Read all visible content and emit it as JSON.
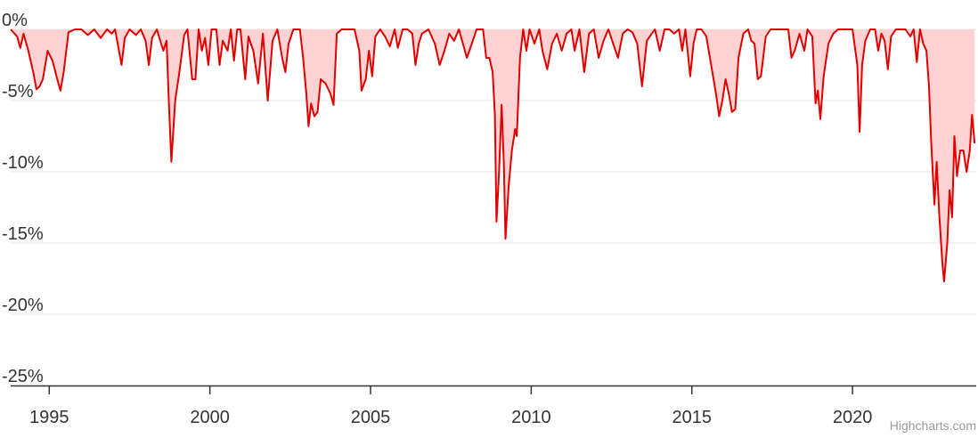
{
  "chart_data": {
    "type": "area",
    "title": "",
    "xlabel": "",
    "ylabel": "",
    "xlim": [
      1993.8,
      2023.85
    ],
    "ylim": [
      -25,
      0
    ],
    "grid": true,
    "legend": "none",
    "y_ticks": [
      {
        "value": 0,
        "label": "0%"
      },
      {
        "value": -5,
        "label": "-5%"
      },
      {
        "value": -10,
        "label": "-10%"
      },
      {
        "value": -15,
        "label": "-15%"
      },
      {
        "value": -20,
        "label": "-20%"
      },
      {
        "value": -25,
        "label": "-25%"
      }
    ],
    "x_ticks": [
      {
        "value": 1995,
        "label": "1995"
      },
      {
        "value": 2000,
        "label": "2000"
      },
      {
        "value": 2005,
        "label": "2005"
      },
      {
        "value": 2010,
        "label": "2010"
      },
      {
        "value": 2015,
        "label": "2015"
      },
      {
        "value": 2020,
        "label": "2020"
      }
    ],
    "series": [
      {
        "color": "#e00000",
        "fill": "#ffd3d3",
        "points": [
          [
            1993.8,
            0
          ],
          [
            1994.0,
            -0.5
          ],
          [
            1994.1,
            -1.3
          ],
          [
            1994.2,
            -0.3
          ],
          [
            1994.35,
            -1.5
          ],
          [
            1994.5,
            -3.0
          ],
          [
            1994.6,
            -4.2
          ],
          [
            1994.7,
            -4.0
          ],
          [
            1994.8,
            -3.5
          ],
          [
            1994.95,
            -1.5
          ],
          [
            1995.1,
            -2.2
          ],
          [
            1995.25,
            -3.5
          ],
          [
            1995.35,
            -4.3
          ],
          [
            1995.45,
            -3.0
          ],
          [
            1995.6,
            -0.2
          ],
          [
            1995.8,
            0
          ],
          [
            1996.0,
            0
          ],
          [
            1996.2,
            -0.4
          ],
          [
            1996.4,
            0
          ],
          [
            1996.6,
            -0.6
          ],
          [
            1996.8,
            0
          ],
          [
            1996.95,
            -0.3
          ],
          [
            1997.05,
            0
          ],
          [
            1997.25,
            -2.5
          ],
          [
            1997.35,
            -0.6
          ],
          [
            1997.5,
            0
          ],
          [
            1997.7,
            -0.4
          ],
          [
            1997.85,
            0
          ],
          [
            1998.0,
            -0.8
          ],
          [
            1998.1,
            -2.5
          ],
          [
            1998.2,
            -0.6
          ],
          [
            1998.35,
            0
          ],
          [
            1998.55,
            -1.5
          ],
          [
            1998.65,
            -0.8
          ],
          [
            1998.72,
            -5.0
          ],
          [
            1998.8,
            -9.3
          ],
          [
            1998.92,
            -5.0
          ],
          [
            1999.05,
            -3.0
          ],
          [
            1999.2,
            -0.4
          ],
          [
            1999.3,
            0
          ],
          [
            1999.45,
            -3.5
          ],
          [
            1999.55,
            -3.5
          ],
          [
            1999.65,
            0
          ],
          [
            1999.75,
            -1.5
          ],
          [
            1999.85,
            -0.6
          ],
          [
            1999.95,
            -2.5
          ],
          [
            2000.05,
            0
          ],
          [
            2000.2,
            0
          ],
          [
            2000.3,
            -2.5
          ],
          [
            2000.4,
            -0.8
          ],
          [
            2000.55,
            -1.5
          ],
          [
            2000.65,
            0
          ],
          [
            2000.75,
            -2.2
          ],
          [
            2000.85,
            0
          ],
          [
            2000.95,
            0
          ],
          [
            2001.1,
            -3.5
          ],
          [
            2001.2,
            -0.5
          ],
          [
            2001.35,
            -1.5
          ],
          [
            2001.5,
            -3.8
          ],
          [
            2001.65,
            -0.3
          ],
          [
            2001.8,
            -5.0
          ],
          [
            2001.95,
            -0.8
          ],
          [
            2002.1,
            0
          ],
          [
            2002.25,
            -2.0
          ],
          [
            2002.35,
            -3.0
          ],
          [
            2002.45,
            -1.0
          ],
          [
            2002.6,
            0
          ],
          [
            2002.8,
            0
          ],
          [
            2002.9,
            -2.0
          ],
          [
            2003.0,
            -4.5
          ],
          [
            2003.07,
            -6.8
          ],
          [
            2003.15,
            -5.2
          ],
          [
            2003.25,
            -6.1
          ],
          [
            2003.35,
            -5.8
          ],
          [
            2003.45,
            -3.5
          ],
          [
            2003.6,
            -3.8
          ],
          [
            2003.75,
            -4.5
          ],
          [
            2003.85,
            -5.3
          ],
          [
            2003.95,
            -0.3
          ],
          [
            2004.1,
            0
          ],
          [
            2004.3,
            0
          ],
          [
            2004.5,
            0
          ],
          [
            2004.65,
            -1.5
          ],
          [
            2004.72,
            -4.3
          ],
          [
            2004.85,
            -3.5
          ],
          [
            2004.95,
            -1.5
          ],
          [
            2005.05,
            -3.3
          ],
          [
            2005.15,
            -0.5
          ],
          [
            2005.3,
            0
          ],
          [
            2005.45,
            -0.5
          ],
          [
            2005.6,
            -1.2
          ],
          [
            2005.75,
            0
          ],
          [
            2005.85,
            -1.3
          ],
          [
            2006.0,
            0
          ],
          [
            2006.15,
            0
          ],
          [
            2006.3,
            -0.3
          ],
          [
            2006.4,
            -2.5
          ],
          [
            2006.5,
            -1.0
          ],
          [
            2006.6,
            -0.3
          ],
          [
            2006.8,
            0
          ],
          [
            2007.0,
            -1.0
          ],
          [
            2007.15,
            -2.5
          ],
          [
            2007.3,
            -1.5
          ],
          [
            2007.45,
            -0.3
          ],
          [
            2007.6,
            -0.8
          ],
          [
            2007.75,
            0
          ],
          [
            2007.9,
            -1.2
          ],
          [
            2008.0,
            -2.0
          ],
          [
            2008.15,
            -1.0
          ],
          [
            2008.3,
            0
          ],
          [
            2008.5,
            0
          ],
          [
            2008.6,
            -2.0
          ],
          [
            2008.7,
            -2.0
          ],
          [
            2008.8,
            -3.0
          ],
          [
            2008.87,
            -6.0
          ],
          [
            2008.92,
            -13.5
          ],
          [
            2009.0,
            -10.0
          ],
          [
            2009.08,
            -5.3
          ],
          [
            2009.15,
            -9.5
          ],
          [
            2009.2,
            -14.7
          ],
          [
            2009.3,
            -11.0
          ],
          [
            2009.4,
            -8.5
          ],
          [
            2009.5,
            -7.0
          ],
          [
            2009.55,
            -7.5
          ],
          [
            2009.65,
            -2.0
          ],
          [
            2009.75,
            0
          ],
          [
            2009.85,
            -1.5
          ],
          [
            2009.95,
            0
          ],
          [
            2010.1,
            -1.0
          ],
          [
            2010.25,
            0
          ],
          [
            2010.35,
            -1.5
          ],
          [
            2010.5,
            -2.8
          ],
          [
            2010.65,
            -1.0
          ],
          [
            2010.8,
            -0.3
          ],
          [
            2010.95,
            -1.5
          ],
          [
            2011.1,
            -0.3
          ],
          [
            2011.25,
            0
          ],
          [
            2011.35,
            -1.5
          ],
          [
            2011.5,
            0
          ],
          [
            2011.65,
            -3.0
          ],
          [
            2011.8,
            -0.3
          ],
          [
            2011.95,
            0
          ],
          [
            2012.1,
            -2.0
          ],
          [
            2012.25,
            -0.8
          ],
          [
            2012.4,
            0
          ],
          [
            2012.55,
            -1.0
          ],
          [
            2012.7,
            -2.0
          ],
          [
            2012.85,
            -0.3
          ],
          [
            2013.0,
            0
          ],
          [
            2013.15,
            -0.2
          ],
          [
            2013.3,
            -1.0
          ],
          [
            2013.45,
            -4.0
          ],
          [
            2013.6,
            -0.8
          ],
          [
            2013.75,
            -0.3
          ],
          [
            2013.85,
            0
          ],
          [
            2014.0,
            -1.5
          ],
          [
            2014.15,
            0
          ],
          [
            2014.3,
            0
          ],
          [
            2014.45,
            -0.3
          ],
          [
            2014.6,
            0
          ],
          [
            2014.7,
            -1.5
          ],
          [
            2014.8,
            0
          ],
          [
            2014.95,
            -3.3
          ],
          [
            2015.05,
            -1.0
          ],
          [
            2015.15,
            0
          ],
          [
            2015.3,
            0
          ],
          [
            2015.45,
            -0.5
          ],
          [
            2015.6,
            -2.5
          ],
          [
            2015.75,
            -4.5
          ],
          [
            2015.85,
            -6.1
          ],
          [
            2015.95,
            -5.0
          ],
          [
            2016.05,
            -3.5
          ],
          [
            2016.15,
            -4.5
          ],
          [
            2016.25,
            -5.8
          ],
          [
            2016.35,
            -5.6
          ],
          [
            2016.45,
            -2.0
          ],
          [
            2016.6,
            -0.3
          ],
          [
            2016.75,
            0
          ],
          [
            2016.85,
            -0.8
          ],
          [
            2016.95,
            -1.0
          ],
          [
            2017.05,
            -3.5
          ],
          [
            2017.15,
            -3.3
          ],
          [
            2017.3,
            -0.5
          ],
          [
            2017.45,
            0
          ],
          [
            2017.65,
            0
          ],
          [
            2017.85,
            0
          ],
          [
            2018.0,
            0
          ],
          [
            2018.1,
            -2.0
          ],
          [
            2018.2,
            -1.5
          ],
          [
            2018.35,
            -0.3
          ],
          [
            2018.5,
            -1.5
          ],
          [
            2018.6,
            0
          ],
          [
            2018.75,
            -0.5
          ],
          [
            2018.85,
            -5.2
          ],
          [
            2018.92,
            -4.3
          ],
          [
            2019.0,
            -6.3
          ],
          [
            2019.1,
            -3.3
          ],
          [
            2019.25,
            -1.0
          ],
          [
            2019.4,
            -0.3
          ],
          [
            2019.55,
            0
          ],
          [
            2019.7,
            0
          ],
          [
            2019.85,
            0
          ],
          [
            2020.0,
            0
          ],
          [
            2020.15,
            -2.5
          ],
          [
            2020.22,
            -7.2
          ],
          [
            2020.3,
            -2.5
          ],
          [
            2020.4,
            -0.8
          ],
          [
            2020.55,
            0
          ],
          [
            2020.7,
            0
          ],
          [
            2020.8,
            -1.5
          ],
          [
            2020.9,
            -0.3
          ],
          [
            2021.0,
            -0.8
          ],
          [
            2021.1,
            -2.8
          ],
          [
            2021.2,
            -0.5
          ],
          [
            2021.35,
            0
          ],
          [
            2021.5,
            0
          ],
          [
            2021.65,
            0
          ],
          [
            2021.8,
            -0.5
          ],
          [
            2021.9,
            0
          ],
          [
            2022.0,
            -2.3
          ],
          [
            2022.1,
            0
          ],
          [
            2022.2,
            -1.0
          ],
          [
            2022.3,
            -1.5
          ],
          [
            2022.38,
            -4.0
          ],
          [
            2022.45,
            -8.0
          ],
          [
            2022.55,
            -12.3
          ],
          [
            2022.62,
            -9.3
          ],
          [
            2022.7,
            -13.0
          ],
          [
            2022.8,
            -16.5
          ],
          [
            2022.85,
            -17.7
          ],
          [
            2022.95,
            -15.0
          ],
          [
            2023.02,
            -11.3
          ],
          [
            2023.1,
            -13.2
          ],
          [
            2023.17,
            -7.5
          ],
          [
            2023.25,
            -10.3
          ],
          [
            2023.35,
            -8.5
          ],
          [
            2023.45,
            -8.5
          ],
          [
            2023.55,
            -10.0
          ],
          [
            2023.65,
            -8.5
          ],
          [
            2023.72,
            -6.0
          ],
          [
            2023.8,
            -8.0
          ]
        ]
      }
    ]
  },
  "credit": "Highcharts.com"
}
